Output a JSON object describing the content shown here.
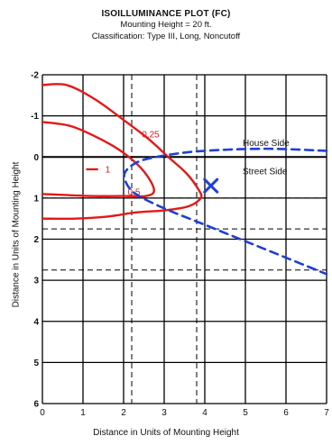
{
  "header": {
    "title": "ISOILLUMINANCE PLOT (FC)",
    "subtitle1": "Mounting Height = 20 ft.",
    "subtitle2": "Classification: Type III, Long, Noncutoff"
  },
  "chart_data": {
    "type": "line",
    "title": "ISOILLUMINANCE PLOT (FC)",
    "xlabel": "Distance in Units of Mounting Height",
    "ylabel": "Distance in Units of Mounting Height",
    "xlim": [
      0,
      7
    ],
    "ylim": [
      -2,
      6
    ],
    "y_inverted": true,
    "grid": true,
    "xticks": [
      "0",
      "1",
      "2",
      "3",
      "4",
      "5",
      "6",
      "7"
    ],
    "yticks": [
      "-2",
      "-1",
      "0",
      "1",
      "2",
      "3",
      "4",
      "5",
      "6"
    ],
    "colors": {
      "contour": "#e41818",
      "curb": "#1f3fd8",
      "marker": "#1f3fd8",
      "grid": "#000000"
    },
    "series": [
      {
        "kind": "isoline",
        "label": "0.25",
        "label_at": [
          2.45,
          -0.55
        ],
        "x": [
          0,
          0.6,
          1.3,
          2.0,
          2.6,
          3.1,
          3.55,
          3.85,
          3.9,
          3.6,
          3.0,
          2.3,
          1.6,
          0.8,
          0
        ],
        "y": [
          -1.75,
          -1.75,
          -1.4,
          -0.9,
          -0.45,
          0.0,
          0.4,
          0.8,
          1.0,
          1.2,
          1.3,
          1.35,
          1.45,
          1.5,
          1.5
        ]
      },
      {
        "kind": "isoline",
        "label": "0.5",
        "label_at": [
          2.1,
          0.85
        ],
        "x": [
          0,
          0.7,
          1.4,
          2.0,
          2.5,
          2.75,
          2.55,
          2.0,
          1.2,
          0
        ],
        "y": [
          -0.85,
          -0.75,
          -0.45,
          -0.1,
          0.35,
          0.8,
          0.95,
          0.95,
          0.95,
          0.9
        ]
      },
      {
        "kind": "isoline",
        "label": "1",
        "label_at": [
          1.55,
          0.3
        ],
        "x": [
          1.1,
          1.35
        ],
        "y": [
          0.3,
          0.3
        ]
      },
      {
        "kind": "curb",
        "x": [
          7.0,
          5.5,
          4.0,
          3.1,
          2.4,
          2.05,
          2.05,
          2.3,
          3.0,
          4.0,
          5.0,
          6.0,
          7.0
        ],
        "y": [
          -0.15,
          -0.2,
          -0.15,
          -0.05,
          0.1,
          0.35,
          0.6,
          0.9,
          1.25,
          1.65,
          2.05,
          2.45,
          2.85
        ]
      }
    ],
    "marker": {
      "symbol": "X",
      "x": 4.15,
      "y": 0.7
    },
    "annotations": [
      {
        "text": "House Side",
        "x": 5.6,
        "y": -0.35
      },
      {
        "text": "Street Side",
        "x": 5.6,
        "y": 0.35
      }
    ],
    "dashed_verticals": [
      1.0,
      2.2,
      3.8
    ],
    "dashed_horizontals": [
      1.0,
      1.75,
      2.75
    ]
  }
}
